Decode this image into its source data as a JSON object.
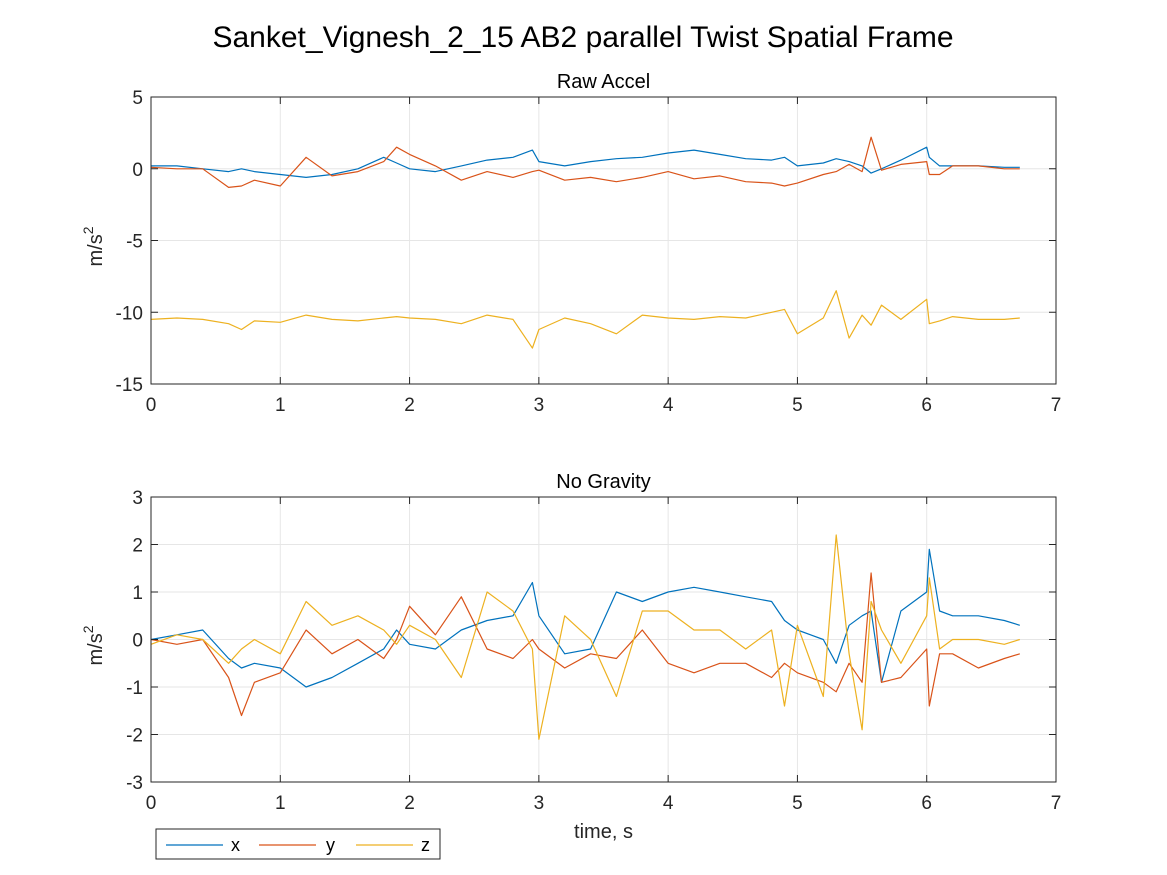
{
  "figure": {
    "title": "Sanket_Vignesh_2_15 AB2 parallel Twist Spatial Frame",
    "background": "#ffffff"
  },
  "colors": {
    "x": "#0072BD",
    "y": "#D95319",
    "z": "#EDB120",
    "grid": "#e6e6e6",
    "axis": "#262626"
  },
  "legend": {
    "placement": "bottom-left, below lower axes",
    "orientation": "horizontal",
    "entries": [
      "x",
      "y",
      "z"
    ]
  },
  "chart_data": [
    {
      "type": "line",
      "title": "Raw Accel",
      "ylabel": "m/s",
      "ylabel_superscript": "2",
      "xlabel": "",
      "xlim": [
        0,
        7
      ],
      "ylim": [
        -15,
        5
      ],
      "xticks": [
        0,
        1,
        2,
        3,
        4,
        5,
        6,
        7
      ],
      "yticks": [
        -15,
        -10,
        -5,
        0,
        5
      ],
      "grid": true,
      "x": [
        0,
        0.2,
        0.4,
        0.6,
        0.7,
        0.8,
        1.0,
        1.2,
        1.4,
        1.6,
        1.8,
        1.9,
        2.0,
        2.2,
        2.4,
        2.6,
        2.8,
        2.95,
        3.0,
        3.2,
        3.4,
        3.6,
        3.8,
        4.0,
        4.2,
        4.4,
        4.6,
        4.8,
        4.9,
        5.0,
        5.2,
        5.3,
        5.4,
        5.5,
        5.57,
        5.65,
        5.8,
        6.0,
        6.02,
        6.1,
        6.2,
        6.4,
        6.6,
        6.72
      ],
      "series": [
        {
          "name": "x",
          "values": [
            0.2,
            0.2,
            0.0,
            -0.2,
            0.0,
            -0.2,
            -0.4,
            -0.6,
            -0.4,
            0.0,
            0.8,
            0.4,
            0.0,
            -0.2,
            0.2,
            0.6,
            0.8,
            1.3,
            0.5,
            0.2,
            0.5,
            0.7,
            0.8,
            1.1,
            1.3,
            1.0,
            0.7,
            0.6,
            0.8,
            0.2,
            0.4,
            0.7,
            0.5,
            0.2,
            -0.3,
            0.0,
            0.6,
            1.5,
            0.8,
            0.2,
            0.2,
            0.2,
            0.1,
            0.1
          ]
        },
        {
          "name": "y",
          "values": [
            0.1,
            0.0,
            0.0,
            -1.3,
            -1.2,
            -0.8,
            -1.2,
            0.8,
            -0.5,
            -0.2,
            0.5,
            1.5,
            1.0,
            0.2,
            -0.8,
            -0.2,
            -0.6,
            -0.2,
            -0.1,
            -0.8,
            -0.6,
            -0.9,
            -0.6,
            -0.2,
            -0.7,
            -0.5,
            -0.9,
            -1.0,
            -1.2,
            -1.0,
            -0.4,
            -0.2,
            0.3,
            -0.2,
            2.2,
            -0.1,
            0.3,
            0.5,
            -0.4,
            -0.4,
            0.2,
            0.2,
            0.0,
            0.0
          ]
        },
        {
          "name": "z",
          "values": [
            -10.5,
            -10.4,
            -10.5,
            -10.8,
            -11.2,
            -10.6,
            -10.7,
            -10.2,
            -10.5,
            -10.6,
            -10.4,
            -10.3,
            -10.4,
            -10.5,
            -10.8,
            -10.2,
            -10.5,
            -12.5,
            -11.2,
            -10.4,
            -10.8,
            -11.5,
            -10.2,
            -10.4,
            -10.5,
            -10.3,
            -10.4,
            -10.0,
            -9.8,
            -11.5,
            -10.4,
            -8.5,
            -11.8,
            -10.2,
            -10.9,
            -9.5,
            -10.5,
            -9.1,
            -10.8,
            -10.6,
            -10.3,
            -10.5,
            -10.5,
            -10.4
          ]
        }
      ]
    },
    {
      "type": "line",
      "title": "No Gravity",
      "ylabel": "m/s",
      "ylabel_superscript": "2",
      "xlabel": "time, s",
      "xlim": [
        0,
        7
      ],
      "ylim": [
        -3,
        3
      ],
      "xticks": [
        0,
        1,
        2,
        3,
        4,
        5,
        6,
        7
      ],
      "yticks": [
        -3,
        -2,
        -1,
        0,
        1,
        2,
        3
      ],
      "grid": true,
      "x": [
        0,
        0.2,
        0.4,
        0.6,
        0.7,
        0.8,
        1.0,
        1.2,
        1.4,
        1.6,
        1.8,
        1.9,
        2.0,
        2.2,
        2.4,
        2.6,
        2.8,
        2.95,
        3.0,
        3.2,
        3.4,
        3.6,
        3.8,
        4.0,
        4.2,
        4.4,
        4.6,
        4.8,
        4.9,
        5.0,
        5.2,
        5.3,
        5.4,
        5.5,
        5.57,
        5.65,
        5.8,
        6.0,
        6.02,
        6.1,
        6.2,
        6.4,
        6.6,
        6.72
      ],
      "series": [
        {
          "name": "x",
          "values": [
            0.0,
            0.1,
            0.2,
            -0.4,
            -0.6,
            -0.5,
            -0.6,
            -1.0,
            -0.8,
            -0.5,
            -0.2,
            0.2,
            -0.1,
            -0.2,
            0.2,
            0.4,
            0.5,
            1.2,
            0.5,
            -0.3,
            -0.2,
            1.0,
            0.8,
            1.0,
            1.1,
            1.0,
            0.9,
            0.8,
            0.4,
            0.2,
            0.0,
            -0.5,
            0.3,
            0.5,
            0.6,
            -0.9,
            0.6,
            1.0,
            1.9,
            0.6,
            0.5,
            0.5,
            0.4,
            0.3
          ]
        },
        {
          "name": "y",
          "values": [
            0.0,
            -0.1,
            0.0,
            -0.8,
            -1.6,
            -0.9,
            -0.7,
            0.2,
            -0.3,
            0.0,
            -0.4,
            0.0,
            0.7,
            0.1,
            0.9,
            -0.2,
            -0.4,
            0.0,
            -0.2,
            -0.6,
            -0.3,
            -0.4,
            0.2,
            -0.5,
            -0.7,
            -0.5,
            -0.5,
            -0.8,
            -0.5,
            -0.7,
            -0.9,
            -1.1,
            -0.5,
            -0.9,
            1.4,
            -0.9,
            -0.8,
            -0.2,
            -1.4,
            -0.3,
            -0.3,
            -0.6,
            -0.4,
            -0.3
          ]
        },
        {
          "name": "z",
          "values": [
            -0.1,
            0.1,
            0.0,
            -0.5,
            -0.2,
            0.0,
            -0.3,
            0.8,
            0.3,
            0.5,
            0.2,
            -0.1,
            0.3,
            0.0,
            -0.8,
            1.0,
            0.6,
            -0.2,
            -2.1,
            0.5,
            0.0,
            -1.2,
            0.6,
            0.6,
            0.2,
            0.2,
            -0.2,
            0.2,
            -1.4,
            0.3,
            -1.2,
            2.2,
            -0.3,
            -1.9,
            0.8,
            0.2,
            -0.5,
            0.5,
            1.3,
            -0.2,
            0.0,
            0.0,
            -0.1,
            0.0
          ]
        }
      ]
    }
  ]
}
